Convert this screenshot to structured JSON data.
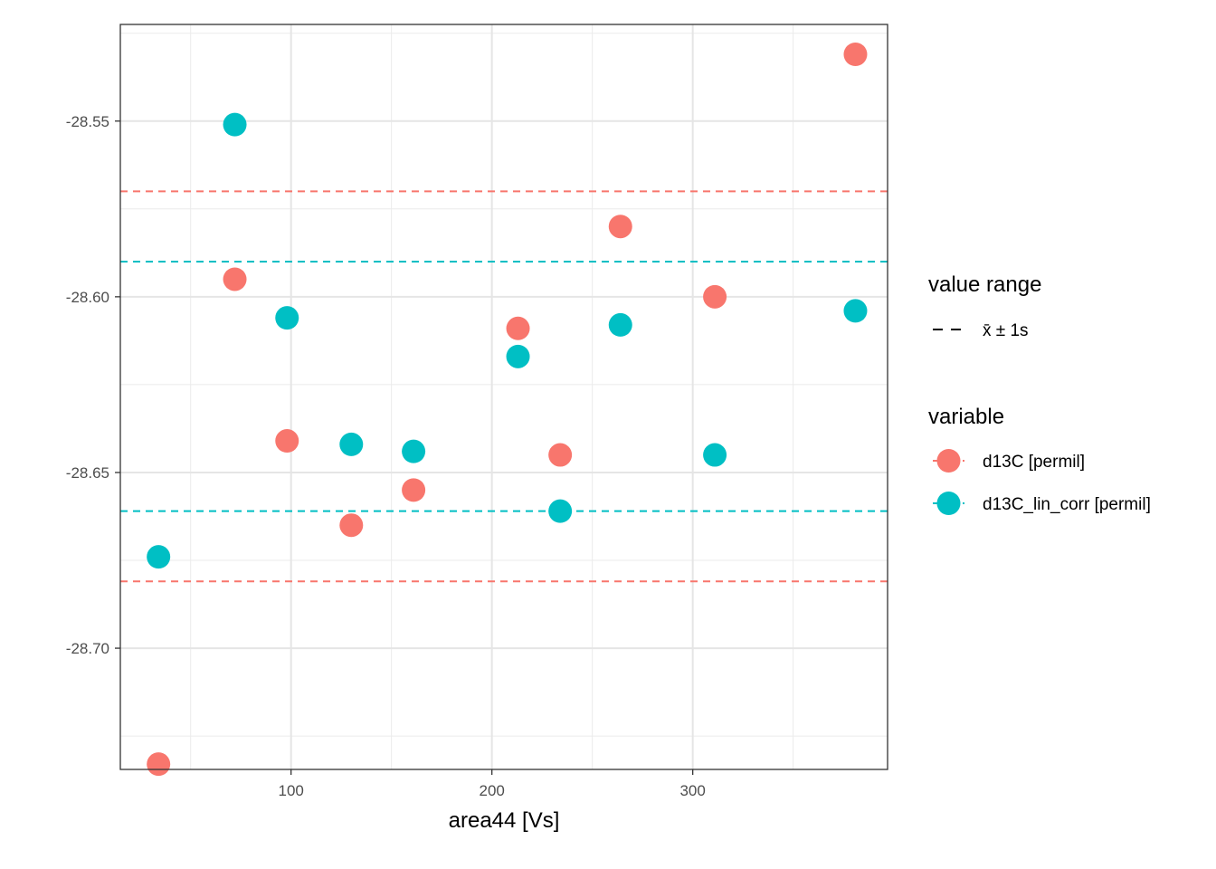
{
  "chart_data": {
    "type": "scatter",
    "title": "",
    "xlabel": "area44 [Vs]",
    "ylabel": "",
    "xlim": [
      15,
      397
    ],
    "ylim": [
      -28.7345,
      -28.5225
    ],
    "x_ticks": [
      100,
      200,
      300
    ],
    "x_tick_labels": [
      "100",
      "200",
      "300"
    ],
    "x_minor_ticks": [
      50,
      150,
      250,
      350
    ],
    "y_ticks": [
      -28.55,
      -28.6,
      -28.65,
      -28.7
    ],
    "y_tick_labels": [
      "-28.55",
      "-28.60",
      "-28.65",
      "-28.70"
    ],
    "y_minor_ticks": [
      -28.525,
      -28.575,
      -28.625,
      -28.675,
      -28.725
    ],
    "grid": true,
    "legend_position": "right",
    "series": [
      {
        "name": "d13C [permil]",
        "color": "#F8766D",
        "x": [
          34,
          72,
          98,
          130,
          161,
          213,
          234,
          264,
          311,
          381
        ],
        "y": [
          -28.733,
          -28.595,
          -28.641,
          -28.665,
          -28.655,
          -28.609,
          -28.645,
          -28.58,
          -28.6,
          -28.531
        ],
        "mean_minus_sd": -28.681,
        "mean_plus_sd": -28.57
      },
      {
        "name": "d13C_lin_corr [permil]",
        "color": "#00BFC4",
        "x": [
          34,
          72,
          98,
          130,
          161,
          213,
          234,
          264,
          311,
          381
        ],
        "y": [
          -28.674,
          -28.551,
          -28.606,
          -28.642,
          -28.644,
          -28.617,
          -28.661,
          -28.608,
          -28.645,
          -28.604
        ],
        "mean_minus_sd": -28.661,
        "mean_plus_sd": -28.59
      }
    ]
  },
  "legend": {
    "range_title": "value range",
    "range_label": "x̄ ± 1s",
    "variable_title": "variable",
    "items": [
      "d13C [permil]",
      "d13C_lin_corr [permil]"
    ]
  }
}
